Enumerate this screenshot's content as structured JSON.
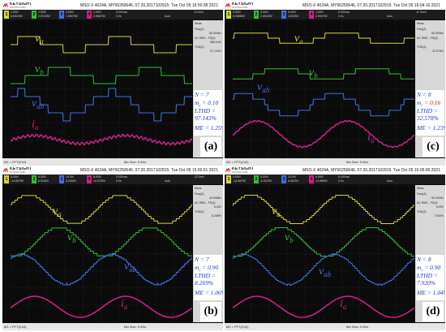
{
  "header": {
    "brand": "KEYSIGHT",
    "brand_sub": "TECHNOLOGIES"
  },
  "panels": [
    {
      "id": "a",
      "model": "MSO-X 4024A, MY56250646, 07.20.2017102915: Tue Oct 05 16:50:38 2021",
      "channels": [
        {
          "num": "1",
          "volts": "2.00V/",
          "offset": "6.50225V"
        },
        {
          "num": "2",
          "volts": "2.00V/",
          "offset": "2.57425V"
        },
        {
          "num": "3",
          "volts": "2.00V/",
          "offset": "1.50275V"
        },
        {
          "num": "4",
          "volts": "1.00V/",
          "offset": "2.50675V"
        }
      ],
      "timebase": "5.000ms/",
      "delay": "0.0s",
      "trigger_mode": "Auto",
      "trigger_level": "10.0mV",
      "meas": {
        "freq": "50.000Hz",
        "rms": "668.0mV",
        "thd": "97.143%"
      },
      "stats": {
        "N": "N = 7",
        "mr": "m",
        "mr_sub": "r",
        "mr_val": " = 0.10",
        "lthd": "LTHD =",
        "lthd_val": "97.143%",
        "me": "ME = 1.25%"
      },
      "letter": "(a)",
      "bottom_left": "M1 = FFT(Ch2)",
      "bottom_right": "Bin Size: 9.5Hz",
      "labels": {
        "va": "v",
        "va_sub": "a",
        "vb": "v",
        "vb_sub": "b",
        "vab": "v",
        "vab_sub": "ab",
        "ia": "i",
        "ia_sub": "a"
      }
    },
    {
      "id": "c",
      "model": "MSO-X 4024A, MY56250646, 07.20.2017102915: Tue Oct 05 16:04:16 2021",
      "channels": [
        {
          "num": "1",
          "volts": "5.00V/",
          "offset": "6.94665V"
        },
        {
          "num": "2",
          "volts": "5.00V/",
          "offset": "2.00425V"
        },
        {
          "num": "3",
          "volts": "5.00V/",
          "offset": "4.8225V"
        },
        {
          "num": "4",
          "volts": "1.00V/",
          "offset": "2.90075V"
        }
      ],
      "timebase": "5.000ms/",
      "delay": "0.0s",
      "trigger_mode": "Auto",
      "trigger_level": "-8.76mV",
      "meas": {
        "freq": "50.000Hz",
        "rms": "",
        "thd": "32.578%"
      },
      "stats": {
        "N": "N = 8",
        "mr": "m",
        "mr_sub": "r",
        "mr_val": " = 0.16",
        "lthd": "LTHD =",
        "lthd_val": "32.578%",
        "me": "ME = 1.23%"
      },
      "letter": "(c)",
      "bottom_left": "M1 = FFT(Ch2)",
      "bottom_right": "Bin Size: 9.5Hz",
      "labels": {
        "va": "v",
        "va_sub": "a",
        "vb": "v",
        "vb_sub": "b",
        "vab": "v",
        "vab_sub": "ab",
        "ia": "i",
        "ia_sub": "a"
      }
    },
    {
      "id": "b",
      "model": "MSO-X 4024A, MY56250646, 07.20.2017102915: Tue Oct 05 15:50:51 2021",
      "channels": [
        {
          "num": "1",
          "volts": "5.00V/",
          "offset": "-14.5075V"
        },
        {
          "num": "2",
          "volts": "5.00V/",
          "offset": "6.0150V"
        },
        {
          "num": "3",
          "volts": "10.0V/",
          "offset": "6.0250V"
        },
        {
          "num": "4",
          "volts": "5.00V/",
          "offset": "14.0750V"
        }
      ],
      "timebase": "5.000ms/",
      "delay": "0.0s",
      "trigger_mode": "Auto",
      "trigger_level": "-22.5mV",
      "meas": {
        "freq": "49.998Hz",
        "rms": "5.00V",
        "thd": "8.269%"
      },
      "stats": {
        "N": "N = 7",
        "mr": "m",
        "mr_sub": "r",
        "mr_val": " = 0.90",
        "lthd": "LTHD =",
        "lthd_val": "8.269%",
        "me": "ME = 1.06%"
      },
      "letter": "(b)",
      "bottom_left": "M1 = FFT(Ch3)",
      "bottom_right": "Bin Size: 9.5Hz",
      "labels": {
        "va": "v",
        "va_sub": "a",
        "vb": "v",
        "vb_sub": "b",
        "vab": "v",
        "vab_sub": "ab",
        "ia": "i",
        "ia_sub": "a"
      }
    },
    {
      "id": "d",
      "model": "MSO-X 4024A, MY56250646, 07.20.2017102915: Tue Oct 05 16:05:09 2021",
      "channels": [
        {
          "num": "1",
          "volts": "5.00V/",
          "offset": "-14.5575V"
        },
        {
          "num": "2",
          "volts": "5.00V/",
          "offset": "-6.0375V"
        },
        {
          "num": "3",
          "volts": "10.0V/",
          "offset": "6.4675V"
        },
        {
          "num": "4",
          "volts": "5.00V/",
          "offset": "14.9850V"
        }
      ],
      "timebase": "5.000ms/",
      "delay": "0.0s",
      "trigger_mode": "Auto",
      "trigger_level": "",
      "meas": {
        "freq": "50.000Hz",
        "rms": "5.00V",
        "thd": "7.920%"
      },
      "stats": {
        "N": "N = 8",
        "mr": "m",
        "mr_sub": "r",
        "mr_val": " = 0.90",
        "lthd": "LTHD =",
        "lthd_val": "7.920%",
        "me": "ME = 1.04%"
      },
      "letter": "(d)",
      "bottom_left": "M1 = FFT(Ch2)",
      "bottom_right": "Bin Size: 9.5Hz",
      "labels": {
        "va": "v",
        "va_sub": "a",
        "vb": "v",
        "vb_sub": "b",
        "vab": "v",
        "vab_sub": "ab",
        "ia": "i",
        "ia_sub": "a"
      }
    }
  ],
  "side_labels": {
    "meas_title": "Meas",
    "freq": "Freq(2):",
    "rms": "AC RMS - FS(2):",
    "thd": "THD(2):"
  },
  "colors": {
    "ch1": "#d6d53a",
    "ch2": "#2fc12f",
    "ch3": "#3f6fe0",
    "ch4": "#cc1f86",
    "grid": "#3a3a3a",
    "label": "#1a3fc8"
  }
}
